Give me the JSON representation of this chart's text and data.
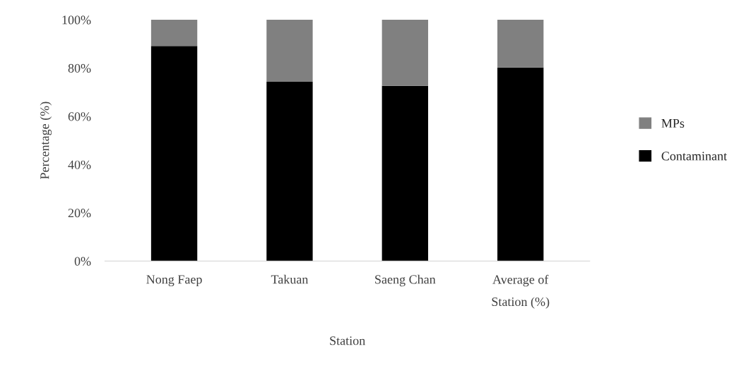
{
  "chart_data": {
    "type": "bar",
    "stacked": true,
    "xlabel": "Station",
    "ylabel": "Percentage (%)",
    "categories": [
      "Nong Faep",
      "Takuan",
      "Saeng Chan",
      "Average of\nStation (%)"
    ],
    "series": [
      {
        "name": "Contaminant",
        "color": "#000000",
        "values": [
          89.1,
          74.3,
          72.6,
          80.2
        ]
      },
      {
        "name": "MPs",
        "color": "#808080",
        "values": [
          10.9,
          25.7,
          27.4,
          19.8
        ]
      }
    ],
    "ylim": [
      0,
      100
    ],
    "yticks": [
      {
        "value": 0,
        "label": "0%"
      },
      {
        "value": 20,
        "label": "20%"
      },
      {
        "value": 40,
        "label": "40%"
      },
      {
        "value": 60,
        "label": "60%"
      },
      {
        "value": 80,
        "label": "80%"
      },
      {
        "value": 100,
        "label": "100%"
      }
    ],
    "grid": false,
    "legend": "right"
  }
}
